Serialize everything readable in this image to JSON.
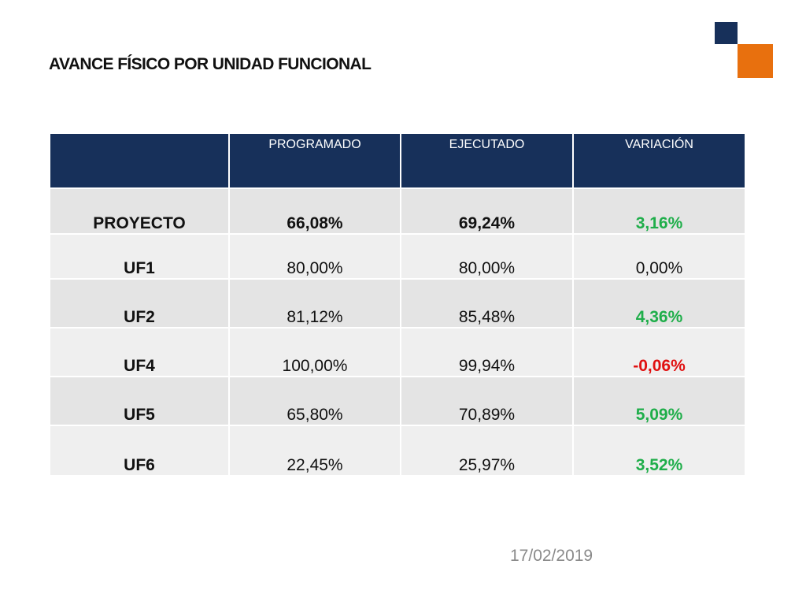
{
  "colors": {
    "header_bg": "#17305a",
    "row_dark": "#e4e4e4",
    "row_light": "#efefef",
    "positive": "#1fae4a",
    "negative": "#e01010",
    "logo_navy": "#17305a",
    "logo_orange": "#e8700e"
  },
  "title": "AVANCE FÍSICO  POR UNIDAD FUNCIONAL",
  "table": {
    "headers": [
      "",
      "PROGRAMADO",
      "EJECUTADO",
      "VARIACIÓN"
    ],
    "rows": [
      {
        "label": "PROYECTO",
        "programado": "66,08%",
        "ejecutado": "69,24%",
        "variacion": "3,16%",
        "variacion_sign": "positive",
        "bold_values": true
      },
      {
        "label": "UF1",
        "programado": "80,00%",
        "ejecutado": "80,00%",
        "variacion": "0,00%",
        "variacion_sign": "neutral",
        "bold_values": false
      },
      {
        "label": "UF2",
        "programado": "81,12%",
        "ejecutado": "85,48%",
        "variacion": "4,36%",
        "variacion_sign": "positive",
        "bold_values": false
      },
      {
        "label": "UF4",
        "programado": "100,00%",
        "ejecutado": "99,94%",
        "variacion": "-0,06%",
        "variacion_sign": "negative",
        "bold_values": false
      },
      {
        "label": "UF5",
        "programado": "65,80%",
        "ejecutado": "70,89%",
        "variacion": "5,09%",
        "variacion_sign": "positive",
        "bold_values": false
      },
      {
        "label": "UF6",
        "programado": "22,45%",
        "ejecutado": "25,97%",
        "variacion": "3,52%",
        "variacion_sign": "positive",
        "bold_values": false
      }
    ]
  },
  "date": "17/02/2019"
}
